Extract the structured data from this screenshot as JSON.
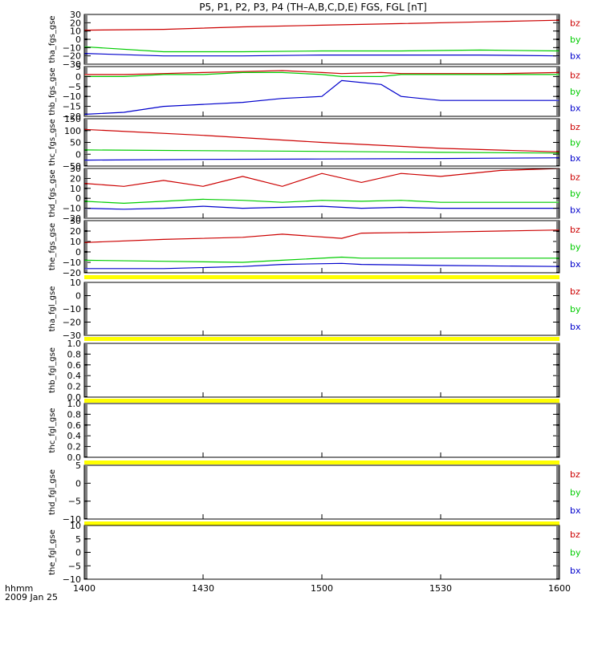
{
  "title": "P5, P1, P2, P3, P4 (TH–A,B,C,D,E) FGS, FGL [nT]",
  "x_axis": {
    "ticks": [
      "1400",
      "1430",
      "1500",
      "1530",
      "1600"
    ],
    "label_line1": "hhmm",
    "label_line2": "2009 Jan 25"
  },
  "colors": {
    "bz": "#cc0000",
    "by": "#00cc00",
    "bx": "#0000cc",
    "bar": "#ffff00",
    "axis": "#000000"
  },
  "chart_data": [
    {
      "type": "line",
      "ylabel": "tha_fgs_gse",
      "ylim": [
        -30,
        30
      ],
      "yticks": [
        "30",
        "20",
        "10",
        "0",
        "−10",
        "−20",
        "−30"
      ],
      "legend": [
        "bz",
        "by",
        "bx"
      ],
      "x": [
        "1400",
        "1420",
        "1440",
        "1500",
        "1520",
        "1540",
        "1600"
      ],
      "series": [
        {
          "name": "bz",
          "values": [
            11,
            12,
            15,
            17,
            19,
            21,
            23
          ]
        },
        {
          "name": "by",
          "values": [
            -9,
            -15,
            -15,
            -14,
            -14,
            -13,
            -14
          ]
        },
        {
          "name": "bx",
          "values": [
            -17,
            -20,
            -20,
            -19,
            -19,
            -19,
            -20
          ]
        }
      ]
    },
    {
      "type": "line",
      "ylabel": "thb_fgs_gse",
      "ylim": [
        -20,
        5
      ],
      "yticks": [
        "5",
        "0",
        "−5",
        "−10",
        "−15",
        "−20"
      ],
      "legend": [
        "bz",
        "by",
        "bx"
      ],
      "x": [
        "1400",
        "1410",
        "1420",
        "1430",
        "1440",
        "1450",
        "1500",
        "1505",
        "1515",
        "1520",
        "1530",
        "1545",
        "1600"
      ],
      "series": [
        {
          "name": "bz",
          "values": [
            1,
            1,
            1.5,
            2,
            2.5,
            3,
            2,
            1.5,
            2,
            1.5,
            1.5,
            1.5,
            2
          ]
        },
        {
          "name": "by",
          "values": [
            0,
            0,
            1,
            1,
            2,
            2,
            1,
            0,
            0,
            1,
            1,
            1,
            1
          ]
        },
        {
          "name": "bx",
          "values": [
            -19,
            -18,
            -15,
            -14,
            -13,
            -11,
            -10,
            -2,
            -4,
            -10,
            -12,
            -12,
            -12
          ]
        }
      ]
    },
    {
      "type": "line",
      "ylabel": "thc_fgs_gse",
      "ylim": [
        -50,
        150
      ],
      "yticks": [
        "150",
        "100",
        "50",
        "0",
        "−50"
      ],
      "legend": [
        "bz",
        "by",
        "bx"
      ],
      "x": [
        "1400",
        "1430",
        "1500",
        "1530",
        "1600"
      ],
      "series": [
        {
          "name": "bz",
          "values": [
            105,
            80,
            50,
            25,
            10
          ]
        },
        {
          "name": "by",
          "values": [
            18,
            15,
            12,
            8,
            5
          ]
        },
        {
          "name": "bx",
          "values": [
            -25,
            -22,
            -20,
            -18,
            -15
          ]
        }
      ]
    },
    {
      "type": "line",
      "ylabel": "thd_fgs_gse",
      "ylim": [
        -20,
        30
      ],
      "yticks": [
        "30",
        "20",
        "10",
        "0",
        "−10",
        "−20"
      ],
      "legend": [
        "bz",
        "by",
        "bx"
      ],
      "x": [
        "1400",
        "1410",
        "1420",
        "1430",
        "1440",
        "1450",
        "1500",
        "1510",
        "1520",
        "1530",
        "1545",
        "1600"
      ],
      "series": [
        {
          "name": "bz",
          "values": [
            15,
            12,
            18,
            12,
            22,
            12,
            25,
            16,
            25,
            22,
            28,
            30
          ]
        },
        {
          "name": "by",
          "values": [
            -3,
            -5,
            -3,
            -1,
            -2,
            -4,
            -2,
            -3,
            -2,
            -4,
            -4,
            -4
          ]
        },
        {
          "name": "bx",
          "values": [
            -10,
            -11,
            -10,
            -8,
            -10,
            -9,
            -8,
            -10,
            -9,
            -10,
            -10,
            -10
          ]
        }
      ]
    },
    {
      "type": "line",
      "ylabel": "the_fgs_gse",
      "ylim": [
        -20,
        30
      ],
      "yticks": [
        "30",
        "20",
        "10",
        "0",
        "−10",
        "−20"
      ],
      "legend": [
        "bz",
        "by",
        "bx"
      ],
      "x": [
        "1400",
        "1420",
        "1440",
        "1450",
        "1505",
        "1510",
        "1530",
        "1600"
      ],
      "series": [
        {
          "name": "bz",
          "values": [
            9,
            12,
            14,
            17,
            13,
            18,
            19,
            21
          ]
        },
        {
          "name": "by",
          "values": [
            -8,
            -9,
            -10,
            -8,
            -5,
            -6,
            -6,
            -6
          ]
        },
        {
          "name": "bx",
          "values": [
            -16,
            -16,
            -14,
            -12,
            -11,
            -12,
            -13,
            -14
          ]
        }
      ]
    },
    {
      "type": "line",
      "ylabel": "tha_fgl_gse",
      "ylim": [
        -30,
        10
      ],
      "yticks": [
        "10",
        "0",
        "−10",
        "−20",
        "−30"
      ],
      "legend": [
        "bz",
        "by",
        "bx"
      ],
      "x": [],
      "series": []
    },
    {
      "type": "line",
      "ylabel": "thb_fgl_gse",
      "ylim": [
        0,
        1
      ],
      "yticks": [
        "1.0",
        "0.8",
        "0.6",
        "0.4",
        "0.2",
        "0.0"
      ],
      "legend": [],
      "x": [],
      "series": []
    },
    {
      "type": "line",
      "ylabel": "thc_fgl_gse",
      "ylim": [
        0,
        1
      ],
      "yticks": [
        "1.0",
        "0.8",
        "0.6",
        "0.4",
        "0.2",
        "0.0"
      ],
      "legend": [],
      "x": [],
      "series": []
    },
    {
      "type": "line",
      "ylabel": "thd_fgl_gse",
      "ylim": [
        -10,
        5
      ],
      "yticks": [
        "5",
        "0",
        "−5",
        "−10"
      ],
      "legend": [
        "bz",
        "by",
        "bx"
      ],
      "x": [],
      "series": []
    },
    {
      "type": "line",
      "ylabel": "the_fgl_gse",
      "ylim": [
        -10,
        10
      ],
      "yticks": [
        "10",
        "5",
        "0",
        "−5",
        "−10"
      ],
      "legend": [
        "bz",
        "by",
        "bx"
      ],
      "x": [],
      "series": []
    }
  ]
}
